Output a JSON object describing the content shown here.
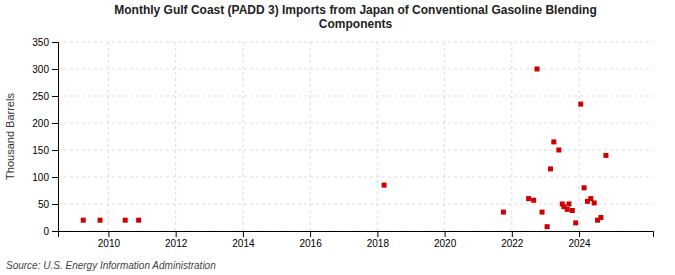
{
  "chart_data": {
    "type": "scatter",
    "title": "Monthly Gulf Coast (PADD 3) Imports from Japan of Conventional Gasoline Blending\nComponents",
    "ylabel": "Thousand Barrels",
    "source": "Source: U.S. Energy Information Administration",
    "color": "#cc0000",
    "marker": "square",
    "grid": true,
    "xlim": [
      2008.5,
      2026.2
    ],
    "ylim": [
      0,
      350
    ],
    "xticks": [
      2010,
      2012,
      2014,
      2016,
      2018,
      2020,
      2022,
      2024
    ],
    "yticks": [
      0,
      50,
      100,
      150,
      200,
      250,
      300,
      350
    ],
    "x": [
      2009.25,
      2009.75,
      2010.5,
      2010.9,
      2018.2,
      2021.75,
      2022.5,
      2022.65,
      2022.75,
      2022.9,
      2023.05,
      2023.15,
      2023.25,
      2023.4,
      2023.5,
      2023.55,
      2023.65,
      2023.7,
      2023.8,
      2023.9,
      2024.05,
      2024.15,
      2024.25,
      2024.35,
      2024.45,
      2024.55,
      2024.65,
      2024.8
    ],
    "values": [
      20,
      20,
      20,
      20,
      85,
      35,
      60,
      57,
      300,
      35,
      8,
      115,
      165,
      150,
      50,
      45,
      40,
      50,
      38,
      15,
      235,
      80,
      55,
      60,
      52,
      20,
      25,
      140
    ]
  }
}
